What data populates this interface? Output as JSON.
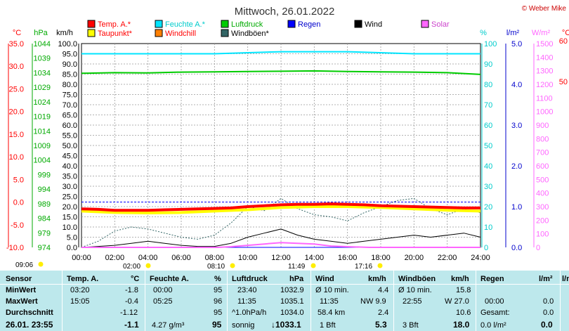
{
  "header": {
    "title": "Mittwoch, 26.01.2022",
    "credit": "© Weber Mike"
  },
  "legend": [
    {
      "label": "Temp. A.*",
      "color": "#ff0000",
      "text_color": "#ff0000"
    },
    {
      "label": "Feuchte A.*",
      "color": "#00e5ff",
      "text_color": "#00cccc"
    },
    {
      "label": "Luftdruck",
      "color": "#00cc00",
      "text_color": "#00aa00"
    },
    {
      "label": "Regen",
      "color": "#0000ff",
      "text_color": "#0000cc"
    },
    {
      "label": "Wind",
      "color": "#000000",
      "text_color": "#000000"
    },
    {
      "label": "Solar",
      "color": "#ff66ff",
      "text_color": "#cc44cc"
    },
    {
      "label": "Taupunkt*",
      "color": "#ffff00",
      "text_color": "#ff0000"
    },
    {
      "label": "Windchill",
      "color": "#ff8000",
      "text_color": "#ff0000"
    },
    {
      "label": "Windböen*",
      "color": "#336666",
      "text_color": "#000000"
    }
  ],
  "axes": {
    "temp": {
      "unit": "°C",
      "color": "#ff0000",
      "ticks": [
        "35.0",
        "30.0",
        "25.0",
        "20.0",
        "15.0",
        "10.0",
        "5.0",
        "0.0",
        "-5.0",
        "-10.0"
      ]
    },
    "pressure": {
      "unit": "hPa",
      "color": "#00aa00",
      "ticks": [
        "1044",
        "1039",
        "1034",
        "1029",
        "1024",
        "1019",
        "1014",
        "1009",
        "1004",
        "999",
        "994",
        "989",
        "984",
        "979",
        "974"
      ]
    },
    "wind": {
      "unit": "km/h",
      "color": "#000000",
      "ticks": [
        "100.0",
        "95.0",
        "90.0",
        "85.0",
        "80.0",
        "75.0",
        "70.0",
        "65.0",
        "60.0",
        "55.0",
        "50.0",
        "45.0",
        "40.0",
        "35.0",
        "30.0",
        "25.0",
        "20.0",
        "15.0",
        "10.0",
        "5.0",
        "0.0"
      ]
    },
    "humidity": {
      "unit": "%",
      "color": "#00cccc",
      "ticks": [
        "100",
        "90",
        "80",
        "70",
        "60",
        "50",
        "40",
        "30",
        "20",
        "10",
        "0"
      ]
    },
    "rain": {
      "unit": "l/m²",
      "color": "#0000cc",
      "ticks": [
        "5.0",
        "4.0",
        "3.0",
        "2.0",
        "1.0",
        "0.0"
      ]
    },
    "solar": {
      "unit": "W/m²",
      "color": "#ff66ff",
      "ticks": [
        "1500",
        "1400",
        "1300",
        "1200",
        "1100",
        "1000",
        "900",
        "800",
        "700",
        "600",
        "500",
        "400",
        "300",
        "200",
        "100",
        "0"
      ]
    },
    "time": {
      "ticks": [
        "00:00",
        "02:00",
        "04:00",
        "06:00",
        "08:00",
        "10:00",
        "12:00",
        "14:00",
        "16:00",
        "18:00",
        "20:00",
        "22:00",
        "24:00"
      ]
    },
    "extra": {
      "unit": "°C",
      "ticks": [
        "60",
        "50"
      ]
    }
  },
  "sun_markers": [
    {
      "label": "09:06"
    },
    {
      "label": "02:00"
    },
    {
      "label": "08:10"
    },
    {
      "label": "11:49"
    },
    {
      "label": "17:16"
    }
  ],
  "chart_data": {
    "type": "line",
    "x_unit": "hours",
    "xlim": [
      0,
      24
    ],
    "series": [
      {
        "name": "Temp. A.*",
        "axis": "temp",
        "color": "#ff0000",
        "x": [
          0,
          1,
          2,
          3,
          4,
          5,
          6,
          7,
          8,
          9,
          10,
          11,
          12,
          13,
          14,
          15,
          16,
          17,
          18,
          19,
          20,
          21,
          22,
          23,
          24
        ],
        "y": [
          -1.5,
          -1.6,
          -1.8,
          -1.8,
          -1.8,
          -1.7,
          -1.6,
          -1.5,
          -1.4,
          -1.3,
          -1.0,
          -0.8,
          -0.6,
          -0.5,
          -0.5,
          -0.4,
          -0.5,
          -0.6,
          -0.8,
          -0.9,
          -1.0,
          -1.1,
          -1.2,
          -1.3,
          -1.3
        ]
      },
      {
        "name": "Taupunkt*",
        "axis": "temp",
        "color": "#ffff00",
        "x": [
          0,
          2,
          4,
          6,
          8,
          10,
          12,
          14,
          16,
          18,
          20,
          22,
          24
        ],
        "y": [
          -2.0,
          -2.3,
          -2.4,
          -2.3,
          -2.0,
          -1.7,
          -1.2,
          -1.0,
          -1.0,
          -1.2,
          -1.5,
          -1.8,
          -2.0
        ]
      },
      {
        "name": "Feuchte A.*",
        "axis": "humidity",
        "color": "#00e5ff",
        "x": [
          0,
          4,
          8,
          12,
          16,
          20,
          24
        ],
        "y": [
          95,
          95,
          95,
          96,
          96,
          95,
          95
        ]
      },
      {
        "name": "Luftdruck",
        "axis": "pressure",
        "color": "#00cc00",
        "x": [
          0,
          2,
          4,
          6,
          8,
          10,
          12,
          14,
          16,
          18,
          20,
          22,
          24
        ],
        "y": [
          1033.8,
          1034.0,
          1033.9,
          1034.2,
          1034.3,
          1034.4,
          1034.5,
          1034.6,
          1034.4,
          1034.3,
          1034.2,
          1034.0,
          1033.4
        ]
      },
      {
        "name": "Wind",
        "axis": "wind",
        "color": "#000000",
        "x": [
          0,
          1,
          2,
          3,
          4,
          5,
          6,
          7,
          8,
          9,
          10,
          11,
          12,
          13,
          14,
          15,
          16,
          17,
          18,
          19,
          20,
          21,
          22,
          23,
          24
        ],
        "y": [
          0,
          0.5,
          1,
          2,
          3,
          2,
          1,
          0.5,
          0.5,
          2,
          5,
          7,
          9,
          6,
          4,
          3,
          2,
          3,
          4,
          5,
          6,
          5,
          6,
          7,
          5
        ]
      },
      {
        "name": "Windböen*",
        "axis": "wind",
        "color": "#336666",
        "x": [
          0,
          1,
          2,
          3,
          4,
          5,
          6,
          7,
          8,
          9,
          10,
          11,
          12,
          13,
          14,
          15,
          16,
          17,
          18,
          19,
          20,
          21,
          22,
          23,
          24
        ],
        "y": [
          0,
          3,
          8,
          10,
          9,
          7,
          5,
          4,
          6,
          12,
          20,
          18,
          24,
          19,
          16,
          15,
          13,
          17,
          20,
          23,
          24,
          19,
          16,
          19,
          17
        ]
      },
      {
        "name": "Solar",
        "axis": "solar",
        "color": "#ff66ff",
        "x": [
          0,
          8.2,
          9,
          10,
          11,
          12,
          13,
          14,
          15,
          16,
          17.3,
          24
        ],
        "y": [
          0,
          0,
          5,
          15,
          25,
          35,
          30,
          25,
          10,
          5,
          0,
          0
        ]
      },
      {
        "name": "Regen",
        "axis": "rain",
        "color": "#0000ff",
        "x": [
          0,
          24
        ],
        "y": [
          0,
          0
        ]
      }
    ]
  },
  "stats": {
    "headers": [
      "Sensor",
      "Temp. A.",
      "°C",
      "Feuchte A.",
      "%",
      "Luftdruck",
      "hPa",
      "Wind",
      "km/h",
      "Windböen",
      "km/h",
      "Regen",
      "l/m²"
    ],
    "row_labels": [
      "MinWert",
      "MaxWert",
      "Durchschnitt",
      "26.01. 23:55"
    ],
    "temp": {
      "min_time": "03:20",
      "min": "-1.8",
      "max_time": "15:05",
      "max": "-0.4",
      "avg": "-1.12",
      "cur": "-1.1"
    },
    "hum": {
      "min_time": "00:00",
      "min": "95",
      "max_time": "05:25",
      "max": "96",
      "avg": "95",
      "extra": "4.27 g/m³",
      "cur": "95"
    },
    "press": {
      "min_time": "23:40",
      "min": "1032.9",
      "max_time": "11:35",
      "max": "1035.1",
      "avg_label": "^1.0hPa/h",
      "avg": "1034.0",
      "trend": "sonnig",
      "cur": "↓1033.1"
    },
    "wind": {
      "min_label": "Ø 10 min.",
      "min": "4.4",
      "max_time": "11:35",
      "max_dir": "NW 9.9",
      "dist": "58.4 km",
      "avg": "2.4",
      "bft": "1 Bft",
      "cur": "5.3"
    },
    "gust": {
      "min_label": "Ø 10 min.",
      "min": "15.8",
      "max_time": "22:55",
      "max_dir": "W 27.0",
      "avg": "10.6",
      "bft": "3 Bft",
      "cur": "18.0"
    },
    "rain": {
      "max_time": "00:00",
      "max": "0.0",
      "total_label": "Gesamt:",
      "total": "0.0",
      "cur_rate": "0.0 l/m²",
      "cur": "0.0"
    },
    "extra_header": "l/m²"
  }
}
